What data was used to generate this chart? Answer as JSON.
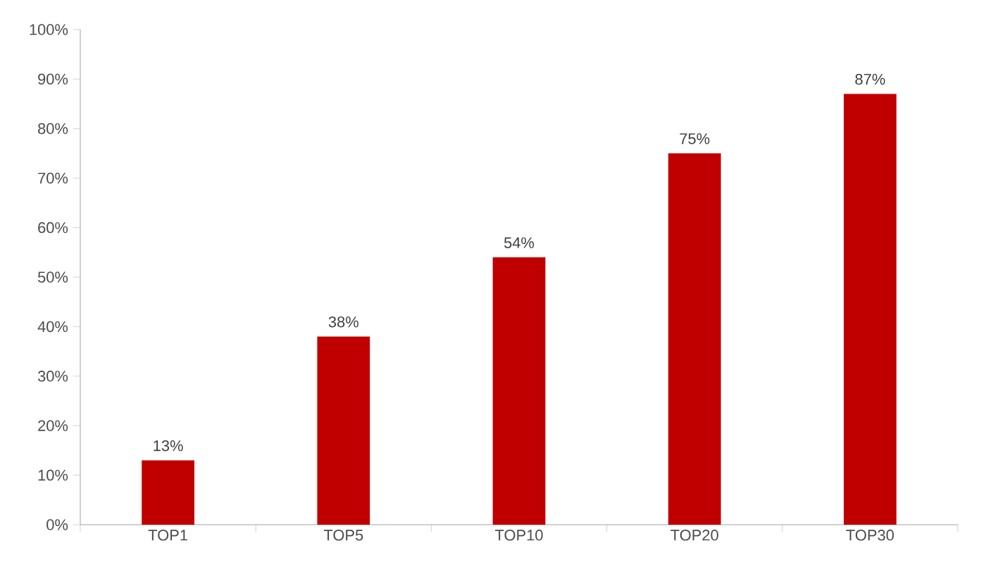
{
  "chart_data": {
    "type": "bar",
    "categories": [
      "TOP1",
      "TOP5",
      "TOP10",
      "TOP20",
      "TOP30"
    ],
    "values": [
      13,
      38,
      54,
      75,
      87
    ],
    "value_labels": [
      "13%",
      "38%",
      "54%",
      "75%",
      "87%"
    ],
    "color": "#c00000",
    "ylim": [
      0,
      100
    ],
    "yticks": [
      {
        "value": 0,
        "label": "0%"
      },
      {
        "value": 10,
        "label": "10%"
      },
      {
        "value": 20,
        "label": "20%"
      },
      {
        "value": 30,
        "label": "30%"
      },
      {
        "value": 40,
        "label": "40%"
      },
      {
        "value": 50,
        "label": "50%"
      },
      {
        "value": 60,
        "label": "60%"
      },
      {
        "value": 70,
        "label": "70%"
      },
      {
        "value": 80,
        "label": "80%"
      },
      {
        "value": 90,
        "label": "90%"
      },
      {
        "value": 100,
        "label": "100%"
      }
    ],
    "grid": false
  }
}
